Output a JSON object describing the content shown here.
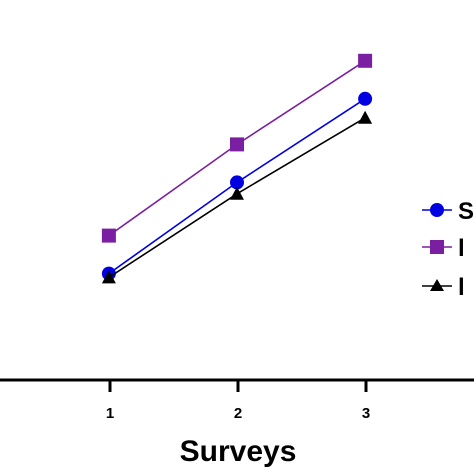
{
  "chart_data": {
    "type": "line",
    "xlabel": "Surveys",
    "ylabel": "",
    "x": [
      1,
      2,
      3
    ],
    "x_tick_labels": [
      "1",
      "2",
      "3"
    ],
    "xlim": [
      0.15,
      3.85
    ],
    "ylim": [
      0,
      100
    ],
    "grid": false,
    "legend_position": "right",
    "series": [
      {
        "label_visible": "S",
        "color": "#0000e0",
        "marker": "circle",
        "values": [
          28,
          52,
          74
        ]
      },
      {
        "label_visible": "l",
        "color": "#7b1fa2",
        "marker": "square",
        "values": [
          38,
          62,
          84
        ]
      },
      {
        "label_visible": "l",
        "color": "#000000",
        "marker": "triangle",
        "values": [
          27,
          49,
          69
        ]
      }
    ]
  }
}
